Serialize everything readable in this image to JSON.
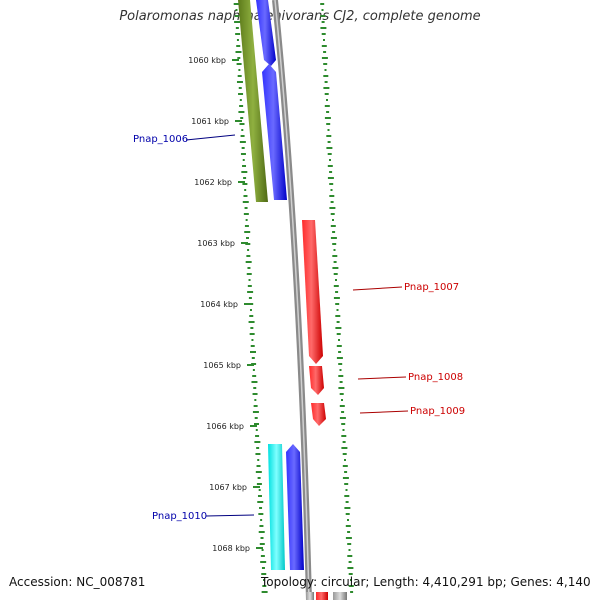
{
  "title": "Polaromonas naphthalenivorans CJ2, complete genome",
  "footer": {
    "accession": "Accession: NC_008781",
    "topology": "Topology: circular; Length: 4,410,291 bp; Genes: 4,140"
  },
  "ruler": {
    "labels": [
      "1060 kbp",
      "1061 kbp",
      "1062 kbp",
      "1063 kbp",
      "1064 kbp",
      "1065 kbp",
      "1066 kbp",
      "1067 kbp",
      "1068 kbp"
    ]
  },
  "genes": [
    {
      "name": "Pnap_1006",
      "strand": "reverse",
      "color": "#0000cc"
    },
    {
      "name": "Pnap_1007",
      "strand": "forward",
      "color": "#cc0000"
    },
    {
      "name": "Pnap_1008",
      "strand": "forward",
      "color": "#cc0000"
    },
    {
      "name": "Pnap_1009",
      "strand": "forward",
      "color": "#cc0000"
    },
    {
      "name": "Pnap_1010",
      "strand": "reverse",
      "color": "#0000cc"
    }
  ],
  "colors": {
    "cds_reverse": "#0000ff",
    "cds_forward": "#ff0000",
    "olive_feature": "#6b8e23",
    "cyan_feature": "#00ffff",
    "backbone": "#888888",
    "gc_skew": "#2e8b2e"
  }
}
